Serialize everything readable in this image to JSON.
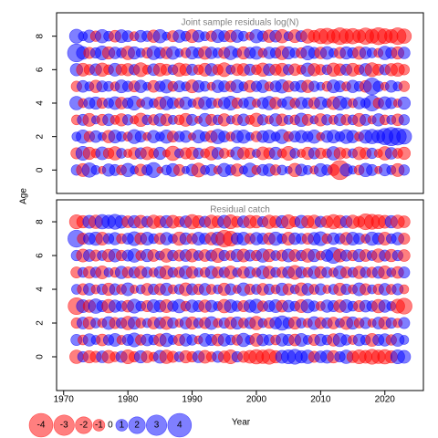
{
  "chart_data": [
    {
      "type": "bubble",
      "title": "Joint sample residuals log(N)",
      "x": [
        1972,
        1973,
        1974,
        1975,
        1976,
        1977,
        1978,
        1979,
        1980,
        1981,
        1982,
        1983,
        1984,
        1985,
        1986,
        1987,
        1988,
        1989,
        1990,
        1991,
        1992,
        1993,
        1994,
        1995,
        1996,
        1997,
        1998,
        1999,
        2000,
        2001,
        2002,
        2003,
        2004,
        2005,
        2006,
        2007,
        2008,
        2009,
        2010,
        2011,
        2012,
        2013,
        2014,
        2015,
        2016,
        2017,
        2018,
        2019,
        2020,
        2021,
        2022,
        2023
      ],
      "ages": [
        0,
        1,
        2,
        3,
        4,
        5,
        6,
        7,
        8
      ],
      "residuals": [
        [
          0.8,
          -1.2,
          1.5,
          0.6,
          -0.4,
          1.1,
          0.9,
          -0.7,
          1.3,
          0.5,
          -1.0,
          0.8,
          1.6,
          -0.3,
          0.7,
          1.2,
          -0.9,
          0.4,
          1.0,
          -1.4,
          0.6,
          0.9,
          -0.5,
          1.3,
          0.8,
          -1.1,
          0.5,
          1.4,
          -0.6,
          0.9,
          1.1,
          -0.8,
          0.7,
          0.4,
          -1.3,
          1.0,
          0.6,
          -0.5,
          1.2,
          0.8,
          -0.9,
          -2.6,
          1.1,
          0.5,
          -0.7,
          1.3,
          0.9,
          -0.4,
          1.0,
          0.6,
          -1.2,
          0.8
        ],
        [
          -0.9,
          1.4,
          -1.1,
          -0.6,
          1.2,
          -0.8,
          -1.3,
          0.7,
          -0.5,
          -1.0,
          0.9,
          -1.2,
          -0.7,
          1.1,
          -0.4,
          -1.5,
          0.6,
          -0.9,
          -1.1,
          0.8,
          -0.6,
          -1.3,
          1.0,
          -0.7,
          -0.4,
          1.2,
          -1.0,
          -0.8,
          0.5,
          -1.2,
          -0.9,
          1.1,
          -0.6,
          -1.4,
          0.7,
          -0.5,
          -1.1,
          0.9,
          -0.8,
          -0.6,
          1.3,
          -1.0,
          -0.7,
          0.6,
          -1.2,
          -0.9,
          0.8,
          -0.5,
          -1.3,
          1.0,
          -0.7,
          -1.1
        ],
        [
          0.6,
          1.3,
          -0.8,
          1.0,
          0.5,
          -1.1,
          1.2,
          0.7,
          -0.6,
          1.4,
          0.9,
          -0.5,
          1.1,
          0.6,
          1.3,
          -0.9,
          0.8,
          1.0,
          -0.4,
          1.2,
          0.7,
          -1.0,
          1.5,
          0.9,
          -0.6,
          1.1,
          1.3,
          0.5,
          -0.8,
          1.0,
          1.2,
          0.6,
          1.4,
          -0.7,
          0.9,
          1.1,
          0.8,
          1.3,
          -0.5,
          1.0,
          1.2,
          0.7,
          1.4,
          1.1,
          -0.6,
          1.3,
          1.5,
          1.2,
          1.9,
          2.4,
          2.1,
          1.6
        ],
        [
          -0.7,
          0.9,
          -1.2,
          0.5,
          -0.9,
          1.0,
          -0.6,
          -1.1,
          0.8,
          -0.5,
          -1.3,
          0.7,
          -0.8,
          1.1,
          -1.0,
          0.6,
          -0.7,
          -1.2,
          0.9,
          -0.4,
          1.2,
          -0.9,
          0.7,
          -1.1,
          0.5,
          -0.8,
          1.0,
          -0.6,
          -1.3,
          0.8,
          -0.5,
          1.1,
          -1.0,
          0.6,
          -0.7,
          1.3,
          -0.9,
          0.5,
          -1.1,
          0.8,
          -0.6,
          1.0,
          -0.8,
          0.7,
          -1.2,
          0.9,
          -0.5,
          1.1,
          -0.7,
          0.6,
          -1.0,
          0.8
        ],
        [
          1.3,
          -0.6,
          0.9,
          1.1,
          -0.8,
          0.7,
          1.2,
          -1.0,
          0.8,
          1.4,
          -0.5,
          1.0,
          0.6,
          -1.1,
          1.3,
          0.9,
          -0.7,
          1.1,
          0.5,
          -0.9,
          1.2,
          0.8,
          -0.6,
          1.0,
          1.4,
          -0.8,
          0.7,
          1.1,
          -0.5,
          0.9,
          1.3,
          -1.0,
          0.6,
          1.2,
          -0.7,
          1.0,
          0.8,
          -0.9,
          1.1,
          0.6,
          -1.2,
          1.4,
          0.9,
          -0.6,
          1.0,
          0.7,
          1.8,
          -0.8,
          1.2,
          0.9,
          -0.5,
          1.1
        ],
        [
          -0.8,
          1.0,
          0.6,
          -1.1,
          0.9,
          0.7,
          -0.6,
          1.2,
          0.8,
          -0.9,
          1.1,
          0.5,
          -1.0,
          0.8,
          1.3,
          -0.7,
          0.9,
          0.6,
          -1.2,
          1.0,
          0.7,
          -0.5,
          1.1,
          0.9,
          -0.8,
          1.2,
          0.6,
          -1.0,
          0.8,
          1.1,
          -0.6,
          0.9,
          1.3,
          -0.9,
          0.7,
          1.0,
          -1.1,
          0.8,
          0.5,
          -0.7,
          1.2,
          0.9,
          -0.6,
          1.1,
          0.7,
          -1.0,
          2.0,
          0.8,
          -0.5,
          1.0,
          0.6,
          -0.8
        ],
        [
          1.1,
          -1.2,
          -0.8,
          1.0,
          -1.3,
          -0.7,
          1.2,
          -0.9,
          -1.1,
          0.8,
          -1.4,
          -0.6,
          1.0,
          -1.2,
          -0.9,
          0.7,
          -1.3,
          -1.0,
          0.9,
          -0.7,
          -1.2,
          1.1,
          -0.8,
          -1.4,
          0.6,
          -1.0,
          -1.1,
          0.9,
          -0.7,
          -1.3,
          1.0,
          -0.9,
          -1.2,
          0.8,
          -1.0,
          -0.6,
          1.3,
          -1.1,
          -0.8,
          0.7,
          -1.3,
          -1.0,
          0.9,
          -1.2,
          -0.7,
          1.1,
          -1.4,
          -0.9,
          0.8,
          -1.1,
          -1.3,
          -0.8
        ],
        [
          2.3,
          1.2,
          -0.9,
          0.8,
          1.4,
          -1.1,
          1.0,
          0.7,
          -1.3,
          1.1,
          0.6,
          -0.8,
          1.3,
          0.9,
          -1.0,
          1.2,
          0.5,
          -0.7,
          1.1,
          0.8,
          -1.2,
          1.0,
          0.7,
          -0.9,
          1.3,
          0.6,
          -1.1,
          0.9,
          1.2,
          -0.6,
          1.0,
          0.8,
          -1.3,
          1.1,
          0.7,
          -0.8,
          1.4,
          0.9,
          -1.0,
          1.2,
          0.6,
          -0.9,
          1.1,
          0.8,
          -1.2,
          1.0,
          0.7,
          -0.6,
          1.3,
          0.9,
          -1.1,
          1.0
        ],
        [
          1.4,
          0.6,
          1.1,
          -0.8,
          1.3,
          0.7,
          -1.0,
          1.2,
          0.9,
          -0.6,
          1.0,
          0.8,
          -1.1,
          1.3,
          0.5,
          -0.9,
          1.1,
          0.7,
          -1.2,
          1.0,
          0.6,
          -0.8,
          1.2,
          0.9,
          -1.0,
          1.1,
          0.7,
          -0.5,
          1.3,
          0.8,
          -1.1,
          1.0,
          -1.3,
          0.6,
          -1.2,
          0.9,
          -1.4,
          -1.0,
          -1.6,
          -1.8,
          -1.3,
          -2.0,
          -1.5,
          -1.7,
          -1.2,
          -1.9,
          -1.4,
          -2.1,
          -1.6,
          -1.3,
          -2.0,
          -1.5
        ]
      ],
      "xlim": [
        1968.9,
        2026
      ],
      "ylim": [
        -1.4,
        9.4
      ],
      "yticks": [
        0,
        2,
        4,
        6,
        8
      ]
    },
    {
      "type": "bubble",
      "title": "Residual catch",
      "x": [
        1972,
        1973,
        1974,
        1975,
        1976,
        1977,
        1978,
        1979,
        1980,
        1981,
        1982,
        1983,
        1984,
        1985,
        1986,
        1987,
        1988,
        1989,
        1990,
        1991,
        1992,
        1993,
        1994,
        1995,
        1996,
        1997,
        1998,
        1999,
        2000,
        2001,
        2002,
        2003,
        2004,
        2005,
        2006,
        2007,
        2008,
        2009,
        2010,
        2011,
        2012,
        2013,
        2014,
        2015,
        2016,
        2017,
        2018,
        2019,
        2020,
        2021,
        2022,
        2023
      ],
      "ages": [
        0,
        1,
        2,
        3,
        4,
        5,
        6,
        7,
        8
      ],
      "residuals": [
        [
          -1.3,
          0.8,
          -1.1,
          -0.9,
          1.0,
          -1.2,
          -0.7,
          0.9,
          -1.4,
          -0.8,
          1.1,
          -1.0,
          -0.6,
          1.2,
          -1.3,
          -0.9,
          0.7,
          -1.1,
          -0.8,
          1.0,
          -1.2,
          -0.7,
          0.9,
          -1.0,
          -1.4,
          0.8,
          -0.9,
          -1.2,
          -1.5,
          -1.3,
          -1.6,
          -1.1,
          1.2,
          1.4,
          1.6,
          1.1,
          1.3,
          -0.9,
          1.0,
          1.2,
          -1.1,
          0.8,
          1.3,
          -1.0,
          -1.4,
          -1.2,
          -1.6,
          -1.3,
          -1.5,
          -1.1,
          1.4,
          1.2
        ],
        [
          0.9,
          -0.7,
          1.1,
          0.6,
          -1.0,
          0.8,
          1.2,
          -0.6,
          0.9,
          1.4,
          -0.8,
          1.0,
          0.7,
          -1.1,
          1.3,
          0.6,
          -0.9,
          1.1,
          0.8,
          -0.5,
          1.2,
          0.9,
          -1.0,
          1.1,
          0.7,
          -0.8,
          1.3,
          0.6,
          -1.2,
          1.0,
          0.8,
          -0.7,
          1.1,
          0.9,
          -1.0,
          1.2,
          0.6,
          -0.9,
          1.0,
          0.7,
          -1.1,
          1.3,
          0.8,
          -0.6,
          1.0,
          0.7,
          -1.2,
          0.9,
          1.1,
          -0.8,
          1.2,
          0.6
        ],
        [
          -0.8,
          1.0,
          -1.1,
          0.7,
          -0.6,
          1.2,
          -0.9,
          0.8,
          -1.3,
          1.1,
          -0.7,
          0.6,
          -1.0,
          0.9,
          -1.2,
          0.8,
          -0.5,
          1.0,
          -1.1,
          0.7,
          -0.9,
          1.2,
          -0.6,
          0.8,
          -1.0,
          1.1,
          -0.7,
          0.9,
          -1.3,
          0.6,
          -0.8,
          1.0,
          1.5,
          0.9,
          -1.1,
          0.7,
          -0.6,
          1.2,
          -0.9,
          0.8,
          -1.0,
          0.6,
          -1.2,
          1.1,
          -0.7,
          0.9,
          -0.5,
          1.0,
          -1.1,
          0.8,
          -0.6,
          0.9
        ],
        [
          -2.0,
          1.2,
          -1.1,
          1.5,
          0.9,
          -1.3,
          1.1,
          0.8,
          -1.0,
          1.4,
          0.7,
          -0.9,
          1.2,
          1.0,
          -1.2,
          0.8,
          1.3,
          -0.7,
          1.1,
          0.9,
          -1.1,
          1.0,
          0.6,
          -1.3,
          1.2,
          0.8,
          -0.9,
          1.1,
          1.4,
          -0.8,
          0.9,
          1.2,
          -1.0,
          1.0,
          0.7,
          -1.2,
          1.3,
          0.8,
          -0.6,
          1.1,
          0.9,
          -1.1,
          1.2,
          0.7,
          -0.9,
          1.0,
          0.8,
          -1.3,
          1.1,
          0.6,
          -1.4,
          -1.8
        ],
        [
          0.7,
          -0.9,
          1.0,
          -0.6,
          0.8,
          -1.1,
          0.9,
          -0.7,
          1.2,
          -0.5,
          0.6,
          -1.0,
          0.8,
          -0.9,
          1.1,
          -0.6,
          0.7,
          -1.2,
          0.9,
          -0.8,
          1.0,
          -0.7,
          0.6,
          -1.1,
          0.9,
          -0.5,
          1.2,
          -0.8,
          0.7,
          -1.0,
          0.8,
          -0.6,
          1.1,
          -0.9,
          0.6,
          -1.2,
          1.0,
          -0.7,
          0.9,
          -0.5,
          0.7,
          -1.1,
          0.8,
          -0.6,
          1.2,
          -0.9,
          0.6,
          -0.8,
          1.0,
          -0.7,
          0.9,
          -0.6
        ],
        [
          -0.9,
          0.7,
          -1.0,
          0.8,
          -1.2,
          0.6,
          -0.7,
          1.1,
          -0.9,
          0.9,
          -1.1,
          0.8,
          -0.6,
          1.0,
          -1.3,
          0.7,
          -0.8,
          1.2,
          -1.0,
          0.6,
          -0.7,
          1.1,
          -0.9,
          0.8,
          -1.2,
          0.6,
          -1.0,
          0.9,
          -0.6,
          1.2,
          -1.1,
          0.7,
          -0.8,
          1.0,
          -1.4,
          0.9,
          -0.7,
          1.1,
          -1.0,
          0.8,
          -0.6,
          1.2,
          -0.9,
          0.7,
          -1.1,
          0.8,
          -0.8,
          1.0,
          -1.2,
          0.6,
          -1.0,
          0.9
        ],
        [
          0.8,
          -1.2,
          1.0,
          -0.9,
          0.7,
          -1.1,
          1.2,
          -0.8,
          0.9,
          1.3,
          -0.7,
          1.1,
          -1.0,
          0.6,
          -1.3,
          0.8,
          -0.9,
          1.0,
          -1.2,
          0.7,
          -1.0,
          0.9,
          -1.4,
          0.8,
          -0.7,
          1.1,
          -1.2,
          0.9,
          -0.8,
          1.3,
          -1.1,
          0.7,
          -0.9,
          1.2,
          -1.0,
          0.8,
          -1.3,
          1.1,
          -0.6,
          1.0,
          1.8,
          -1.2,
          0.9,
          -0.8,
          1.1,
          -1.0,
          0.7,
          -1.3,
          0.9,
          -1.1,
          0.8,
          -1.0
        ],
        [
          2.1,
          -0.9,
          1.0,
          1.3,
          -1.2,
          0.8,
          1.1,
          -0.7,
          0.9,
          1.4,
          -1.0,
          1.2,
          0.7,
          -0.9,
          1.1,
          0.6,
          -1.3,
          1.0,
          -0.8,
          1.2,
          0.9,
          -1.1,
          1.3,
          -2.0,
          -1.6,
          1.0,
          1.2,
          -0.8,
          1.1,
          0.9,
          -1.0,
          1.3,
          0.7,
          -1.2,
          1.0,
          0.8,
          -0.9,
          1.1,
          1.4,
          -0.7,
          1.0,
          0.8,
          -1.1,
          1.2,
          0.9,
          -0.6,
          1.3,
          1.0,
          -1.2,
          0.7,
          1.1,
          -0.9
        ],
        [
          -1.4,
          -1.1,
          1.2,
          -1.3,
          1.5,
          1.3,
          1.6,
          1.2,
          -1.0,
          1.1,
          -1.2,
          0.9,
          -1.3,
          -1.0,
          1.1,
          -1.2,
          -0.8,
          1.0,
          -1.5,
          -1.1,
          0.9,
          -1.3,
          -1.0,
          1.2,
          -1.4,
          -0.9,
          1.0,
          -1.2,
          -1.1,
          0.8,
          -1.3,
          -1.0,
          1.1,
          -1.4,
          -0.8,
          1.2,
          -1.1,
          -1.3,
          0.9,
          -1.0,
          -1.5,
          -1.2,
          1.0,
          -1.3,
          -0.9,
          -1.8,
          -1.6,
          -1.4,
          -1.2,
          1.1,
          -1.3,
          -1.0
        ]
      ],
      "xlim": [
        1968.9,
        2026
      ],
      "xticks": [
        1970,
        1980,
        1990,
        2000,
        2010,
        2020
      ],
      "ylim": [
        -2.0,
        9.3
      ],
      "yticks": [
        0,
        2,
        4,
        6,
        8
      ]
    }
  ],
  "axis_labels": {
    "x": "Year",
    "y": "Age"
  },
  "colors": {
    "negative": "#ff0000",
    "positive": "#0000ff"
  },
  "legend": {
    "values": [
      -4,
      -3,
      -2,
      -1,
      0,
      1,
      2,
      3,
      4
    ]
  }
}
